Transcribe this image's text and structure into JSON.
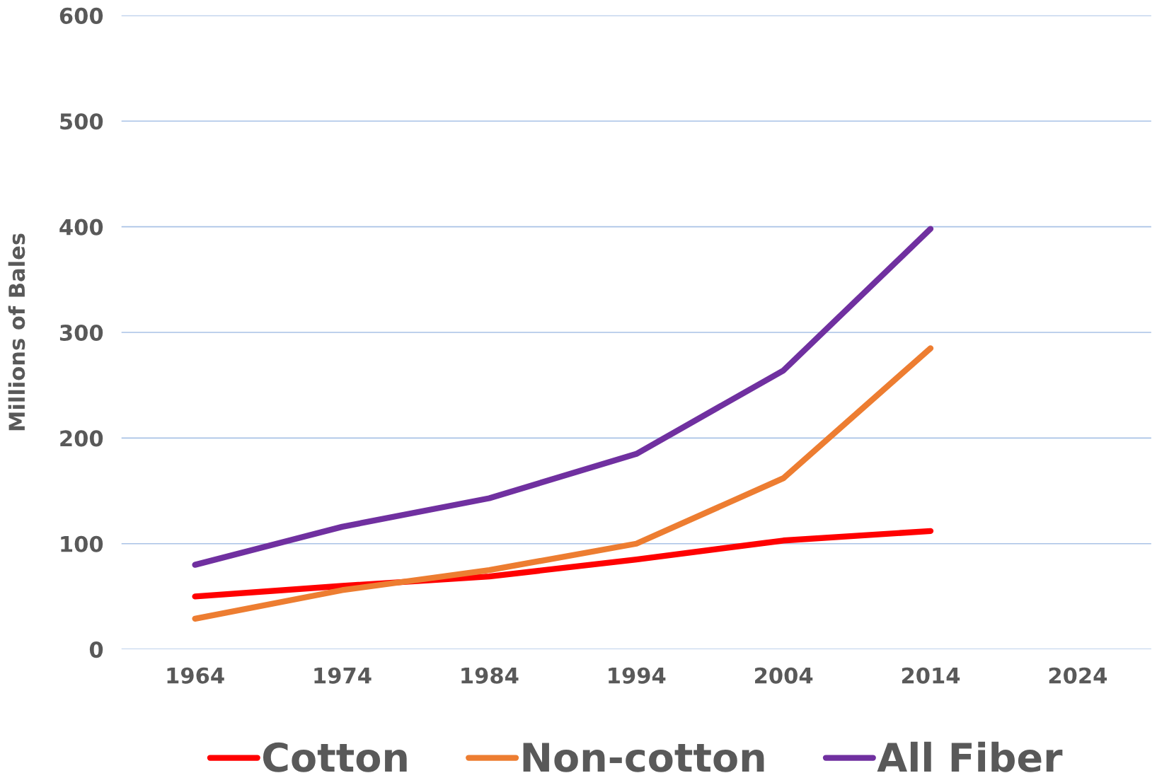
{
  "chart_data": {
    "type": "line",
    "ylabel": "Millions of Bales",
    "categories": [
      "1964",
      "1974",
      "1984",
      "1994",
      "2004",
      "2014",
      "2024"
    ],
    "series": [
      {
        "name": "Cotton",
        "color": "#ff0000",
        "values": [
          50,
          60,
          69,
          85,
          103,
          112,
          null
        ]
      },
      {
        "name": "Non-cotton",
        "color": "#ed7d31",
        "values": [
          29,
          56,
          75,
          100,
          162,
          285,
          null
        ]
      },
      {
        "name": "All Fiber",
        "color": "#7030a0",
        "values": [
          80,
          116,
          143,
          185,
          264,
          398,
          null
        ]
      }
    ],
    "ylim": [
      0,
      600
    ],
    "yticks": [
      0,
      100,
      200,
      300,
      400,
      500,
      600
    ],
    "grid": "y",
    "legend": "bottom",
    "marker": "none",
    "line_style": "solid"
  }
}
